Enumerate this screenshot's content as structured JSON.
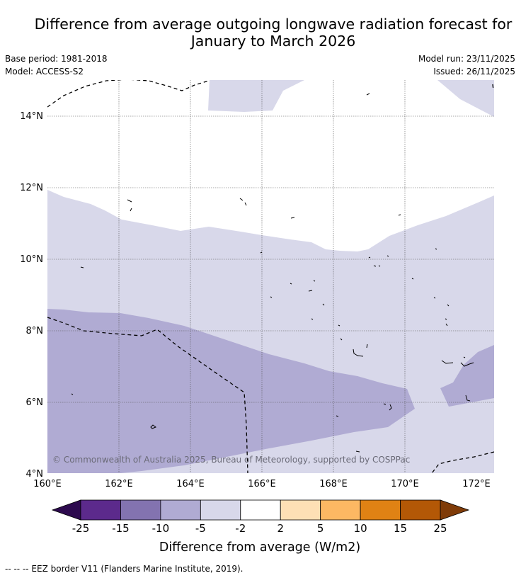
{
  "title": {
    "line1": "Difference from average outgoing longwave radiation forecast for",
    "line2": "January to March 2026"
  },
  "meta": {
    "base_period": "Base period: 1981-2018",
    "model": "Model: ACCESS-S2",
    "model_run": "Model run: 23/11/2025",
    "issued": "Issued: 26/11/2025"
  },
  "map": {
    "lat_labels": [
      "14°N",
      "12°N",
      "10°N",
      "8°N",
      "6°N",
      "4°N"
    ],
    "lon_labels": [
      "160°E",
      "162°E",
      "164°E",
      "166°E",
      "168°E",
      "170°E",
      "172°E"
    ],
    "copyright": "© Commonwealth of Australia 2025, Bureau of Meteorology, supported by COSPPac"
  },
  "colorbar": {
    "tick_labels": [
      "-25",
      "-15",
      "-10",
      "-5",
      "-2",
      "2",
      "5",
      "10",
      "15",
      "25"
    ],
    "colors": {
      "under": "#2d0a4e",
      "bins": [
        "#5c2a8c",
        "#8373b0",
        "#b0abd3",
        "#d8d8ea",
        "#ffffff",
        "#fee0b5",
        "#fdb863",
        "#e08214",
        "#b35806"
      ],
      "over": "#7f3b08"
    },
    "title": "Difference from average (W/m2)"
  },
  "footer": {
    "legend_text": "--  --  -- EEZ border V11 (Flanders Marine Institute, 2019)."
  }
}
